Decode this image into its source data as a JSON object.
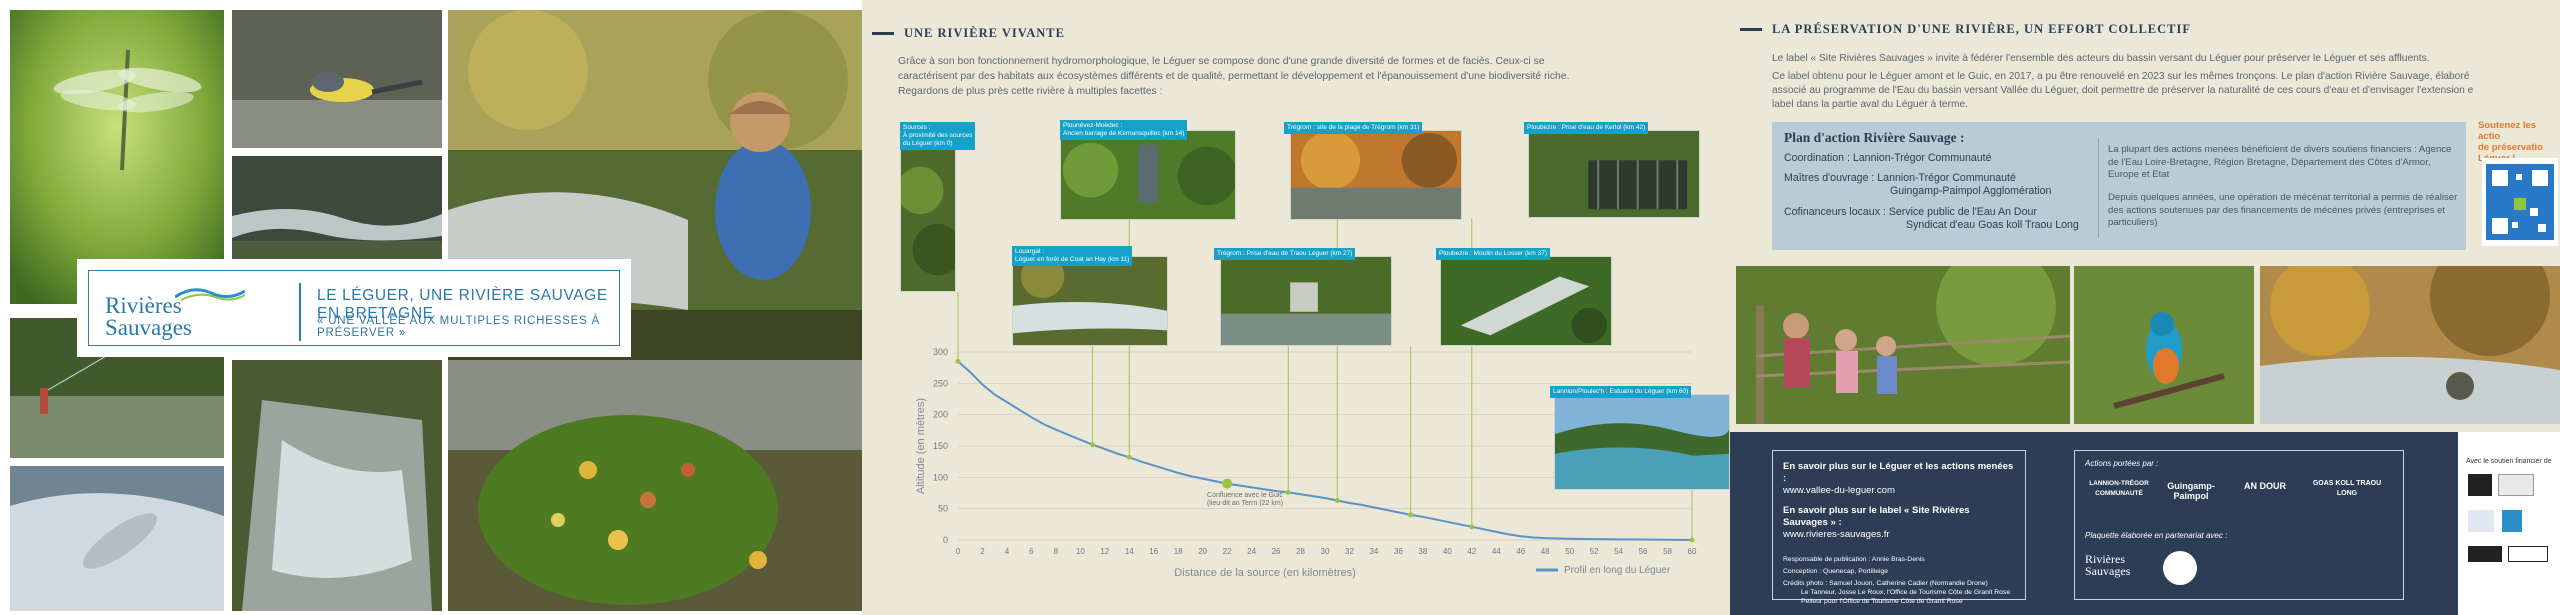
{
  "panel1": {
    "logo": {
      "line1": "Rivières",
      "line2": "Sauvages"
    },
    "title": "LE LÉGUER, UNE RIVIÈRE SAUVAGE EN BRETAGNE",
    "subtitle": "« UNE VALLÉE AUX MULTIPLES RICHESSES À PRÉSERVER »"
  },
  "panel2": {
    "heading": "UNE RIVIÈRE VIVANTE",
    "intro": [
      "Grâce à son bon fonctionnement hydromorphologique, le Léguer se compose donc d'une grande diversité de formes et de faciès. Ceux-ci se",
      "caractérisent par des habitats aux écosystèmes différents et de qualité, permettant le développement et l'épanouissement d'une biodiversité riche.",
      "Regardons de plus près cette rivière à multiples facettes :"
    ],
    "photos": [
      {
        "caption": [
          "Sources :",
          "À proximité des sources",
          "du Léguer (km 0)"
        ]
      },
      {
        "caption": [
          "Plounévez-Moëdec :",
          "Ancien barrage de Kernansquillec (km 14)"
        ]
      },
      {
        "caption": [
          "Trégrom : site de la plage de Trégrom (km 31)"
        ]
      },
      {
        "caption": [
          "Ploubezre : Prise d'eau de Kerlol (km 42)"
        ]
      },
      {
        "caption": [
          "Louargat :",
          "Léguer en forêt de Coat an Hay (km 11)"
        ]
      },
      {
        "caption": [
          "Trégrom : Prise d'eau de Traou Léguer (km 27)"
        ]
      },
      {
        "caption": [
          "Ploubezre : Moulin du Losser (km 37)"
        ]
      },
      {
        "caption": [
          "Lannion/Ploulec'h : Estuaire du Léguer (km 60)"
        ]
      }
    ],
    "annotation": [
      "Confluence avec le Guic",
      "(lieu-dit an Terrn (22 km)"
    ]
  },
  "chart_data": {
    "type": "line",
    "title": "",
    "xlabel": "Distance de la source (en kilomètres)",
    "ylabel": "Altitude (en mètres)",
    "xlim": [
      0,
      60
    ],
    "ylim": [
      0,
      300
    ],
    "xticks": [
      0,
      2,
      4,
      6,
      8,
      10,
      12,
      14,
      16,
      18,
      20,
      22,
      24,
      26,
      28,
      30,
      32,
      34,
      36,
      38,
      40,
      42,
      44,
      46,
      48,
      50,
      52,
      54,
      56,
      58,
      60
    ],
    "yticks": [
      0,
      50,
      100,
      150,
      200,
      250,
      300
    ],
    "legend": "bottom-right",
    "series": [
      {
        "name": "Profil en long du Léguer",
        "color": "#5b93c9",
        "x": [
          0,
          1,
          2,
          3,
          4,
          5,
          6,
          7,
          8,
          9,
          10,
          11,
          12,
          13,
          14,
          15,
          16,
          17,
          18,
          19,
          20,
          21,
          22,
          23,
          24,
          25,
          26,
          27,
          28,
          29,
          30,
          31,
          32,
          33,
          34,
          35,
          36,
          37,
          38,
          39,
          40,
          41,
          42,
          43,
          44,
          45,
          46,
          47,
          48,
          50,
          52,
          54,
          56,
          58,
          60
        ],
        "y": [
          285,
          268,
          248,
          232,
          220,
          208,
          196,
          185,
          176,
          168,
          160,
          152,
          145,
          138,
          132,
          125,
          119,
          113,
          107,
          102,
          98,
          94,
          90,
          87,
          84,
          81,
          78,
          76,
          73,
          70,
          67,
          63,
          59,
          56,
          52,
          48,
          44,
          40,
          37,
          33,
          29,
          25,
          21,
          17,
          13,
          9,
          6,
          4,
          3,
          2,
          1.5,
          1,
          0.8,
          0.5,
          0
        ]
      }
    ],
    "markers": [
      {
        "x": 0,
        "y": 285
      },
      {
        "x": 11,
        "y": 152
      },
      {
        "x": 14,
        "y": 132
      },
      {
        "x": 22,
        "y": 90
      },
      {
        "x": 27,
        "y": 76
      },
      {
        "x": 31,
        "y": 63
      },
      {
        "x": 37,
        "y": 40
      },
      {
        "x": 42,
        "y": 21
      },
      {
        "x": 60,
        "y": 0
      }
    ]
  },
  "panel3": {
    "heading": "LA PRÉSERVATION D'UNE RIVIÈRE, UN EFFORT COLLECTIF",
    "intro": [
      "Le label « Site Rivières Sauvages » invite à fédérer l'ensemble des acteurs du bassin versant du Léguer pour préserver le Léguer et ses affluents.",
      "Ce label obtenu pour le Léguer amont et le Guic, en 2017, a pu être renouvelé en 2023 sur les mêmes tronçons. Le plan d'action Rivière Sauvage, élaboré",
      "associé au programme de l'Eau du bassin versant Vallée du Léguer, doit permettre de préserver la naturalité de ces cours d'eau et d'envisager l'extension e",
      "label dans la partie aval du Léguer à terme."
    ],
    "plan": {
      "title": "Plan d'action Rivière Sauvage :",
      "coord": "Coordination : Lannion-Trégor Communauté",
      "mo1": "Maîtres d'ouvrage : Lannion-Trégor Communauté",
      "mo2": "Guingamp-Paimpol Agglomération",
      "co1": "Cofinanceurs locaux : Service public de l'Eau An Dour",
      "co2": "Syndicat d'eau Goas koll Traou Long",
      "right1": "La plupart des actions menées bénéficient de divers soutiens financiers : Agence de l'Eau Loire-Bretagne, Région Bretagne, Département des Côtes d'Armor, Europe et Etat",
      "right2": "Depuis quelques années, une opération de mécénat territorial a permis de réaliser des actions soutenues par des financements de mécènes privés (entreprises et particuliers)"
    },
    "side": [
      "Soutenez les actio",
      "de préservatio",
      "Léguer !"
    ],
    "footer": {
      "b1": "En savoir plus sur le Léguer et les actions menées :",
      "u1": "www.vallee-du-leguer.com",
      "b2": "En savoir plus sur le label « Site Rivières Sauvages » :",
      "u2": "www.rivieres-sauvages.fr",
      "resp": "Responsable de publication : Annie Bras-Denis",
      "conc": "Conception : Quenecap, Portilleige",
      "cred": "Crédits photo : Samuel Jouon, Catherine Cadier (Normandie Drone)",
      "cred2": "Le Tanneur, Josse Le Roux, l'Office de Tourisme Côte de Granit Rose",
      "cred3": "Pelleur pour l'Office de Tourisme Côte de Granit Rose",
      "actions": "Actions portées par :",
      "partner": "Plaquette élaborée en partenariat avec :",
      "logo_rs1": "Rivières",
      "logo_rs2": "Sauvages",
      "logos": [
        "LANNION-TRÉGOR COMMUNAUTÉ",
        "Guingamp-Paimpol",
        "AN DOUR",
        "GOAS KOLL TRAOU LONG"
      ],
      "soutien": "Avec le soutien financier de"
    }
  }
}
